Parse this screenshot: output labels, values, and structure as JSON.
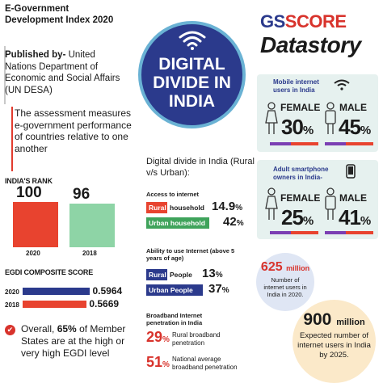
{
  "egdi": {
    "title": "E-Government Development Index 2020",
    "published_label": "Published by-",
    "published_by": "United Nations Department of Economic and Social Affairs (UN DESA)",
    "assessment": "The assessment measures e-government performance of countries relative to one another",
    "rank_header": "INDIA'S RANK",
    "ranks": [
      {
        "year": "2020",
        "rank": "100",
        "color": "#e8432f"
      },
      {
        "year": "2018",
        "rank": "96",
        "color": "#8ed4a6"
      }
    ],
    "composite_header": "EGDI COMPOSITE SCORE",
    "scores": [
      {
        "year": "2020",
        "score": "0.5964",
        "fraction": 0.5964,
        "color": "#2b3a8c"
      },
      {
        "year": "2018",
        "score": "0.5669",
        "fraction": 0.5669,
        "color": "#e8432f"
      }
    ],
    "overall_prefix": "Overall,",
    "overall_pct": "65%",
    "overall_rest": "of Member States are at the high or very high EGDI level"
  },
  "center": {
    "title_line1": "DIGITAL",
    "title_line2": "DIVIDE IN",
    "title_line3": "INDIA",
    "divide_title": "Digital divide in India (Rural v/s Urban):",
    "access": {
      "header": "Access to internet",
      "rural_tag": "Rural",
      "rural_label": "household",
      "rural_pct": "14.9",
      "urban_label": "Urban household",
      "urban_pct": "42",
      "pct_sign": "%"
    },
    "ability": {
      "header": "Ability to use Internet (above 5 years of age)",
      "rural_tag": "Rural",
      "rural_label": "People",
      "rural_pct": "13",
      "urban_label": "Urban People",
      "urban_pct": "37",
      "pct_sign": "%"
    },
    "broadband": {
      "header": "Broadband Internet penetration in India",
      "rural_pct": "29",
      "rural_note": "Rural broadband penetration",
      "national_pct": "51",
      "national_note": "National average broadband penetration",
      "pct_sign": "%"
    }
  },
  "brand": {
    "gs": "GS",
    "score": "SCORE",
    "datastory": "Datastory"
  },
  "mobile": {
    "header": "Mobile internet users in India",
    "female_label": "FEMALE",
    "female_pct": "30",
    "male_label": "MALE",
    "male_pct": "45",
    "pct_sign": "%"
  },
  "smartphone": {
    "header": "Adult smartphone owners in India-",
    "female_label": "FEMALE",
    "female_pct": "25",
    "male_label": "MALE",
    "male_pct": "41",
    "pct_sign": "%"
  },
  "users": {
    "count_625": "625",
    "unit_625": "million",
    "text_625": "Number of internet users in India in 2020.",
    "count_900": "900",
    "unit_900": "million",
    "text_900": "Expected number of internet users in India by 2025."
  },
  "colors": {
    "navy": "#2b3a8c",
    "red": "#d8332c",
    "orange": "#e8432f",
    "green": "#3fa35b",
    "purple": "#7b3fb3",
    "panel": "#e6f1ef"
  }
}
